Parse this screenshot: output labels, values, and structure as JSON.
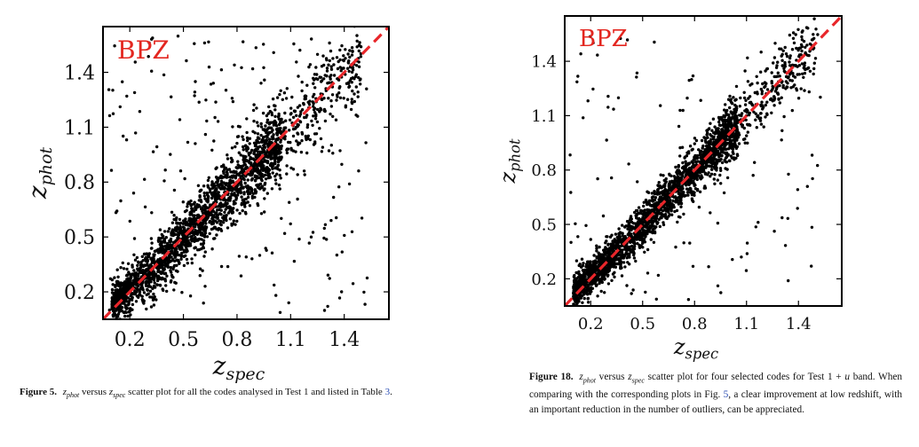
{
  "chart_data": [
    {
      "type": "scatter",
      "annotation": "BPZ",
      "xlabel_main": "z",
      "xlabel_sub": "spec",
      "ylabel_main": "z",
      "ylabel_sub": "phot",
      "xticks": [
        "0.2",
        "0.5",
        "0.8",
        "1.1",
        "1.4"
      ],
      "yticks": [
        "0.2",
        "0.5",
        "0.8",
        "1.1",
        "1.4"
      ],
      "xlim": [
        0.05,
        1.65
      ],
      "ylim": [
        0.05,
        1.65
      ],
      "reference_line": {
        "style": "dashed",
        "color": "#e8262a",
        "from": [
          0.05,
          0.05
        ],
        "to": [
          1.65,
          1.65
        ]
      },
      "marker_color": "#000000",
      "grid": false,
      "distribution": {
        "n": 2600,
        "core_sigma": 0.055,
        "outlier_fraction": 0.08,
        "seed": 11
      }
    },
    {
      "type": "scatter",
      "annotation": "BPZ",
      "xlabel_main": "z",
      "xlabel_sub": "spec",
      "ylabel_main": "z",
      "ylabel_sub": "phot",
      "xticks": [
        "0.2",
        "0.5",
        "0.8",
        "1.1",
        "1.4"
      ],
      "yticks": [
        "0.2",
        "0.5",
        "0.8",
        "1.1",
        "1.4"
      ],
      "xlim": [
        0.05,
        1.65
      ],
      "ylim": [
        0.05,
        1.65
      ],
      "reference_line": {
        "style": "dashed",
        "color": "#e8262a",
        "from": [
          0.05,
          0.05
        ],
        "to": [
          1.65,
          1.65
        ]
      },
      "marker_color": "#000000",
      "grid": false,
      "distribution": {
        "n": 2600,
        "core_sigma": 0.04,
        "outlier_fraction": 0.045,
        "seed": 29
      }
    }
  ],
  "captions": {
    "left": {
      "lead": "Figure 5.",
      "zphot": "z",
      "zphot_sub": "phot",
      "middle": " versus ",
      "zspec": "z",
      "zspec_sub": "spec",
      "text": " scatter plot for all the codes analysed in Test 1 and listed in Table ",
      "ref": "3",
      "end": "."
    },
    "right": {
      "lead": "Figure 18.",
      "zphot": "z",
      "zphot_sub": "phot",
      "middle": " versus ",
      "zspec": "z",
      "zspec_sub": "spec",
      "text1": " scatter plot for four selected codes for Test 1 + ",
      "u": "u",
      "text2": " band. When comparing with the corresponding plots in Fig. ",
      "ref": "5",
      "text3": ", a clear improvement at low redshift, with an important reduction in the number of outliers, can be appreciated."
    }
  }
}
